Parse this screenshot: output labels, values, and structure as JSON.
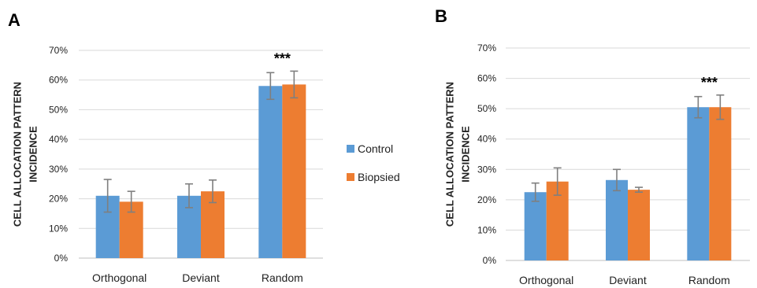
{
  "legend": {
    "placement": "between-panels",
    "entries": [
      "Control",
      "Biopsied"
    ]
  },
  "colors": {
    "control": "#5B9BD5",
    "biopsied": "#ED7D31",
    "error": "#7f7f7f",
    "grid": "#d9d9d9"
  },
  "chart_data": [
    {
      "type": "bar",
      "panel": "A",
      "title": "",
      "ylabel_lines": [
        "CELL ALLOCATION PATTERN",
        "INCIDENCE"
      ],
      "xlabel": "",
      "categories": [
        "Orthogonal",
        "Deviant",
        "Random"
      ],
      "ylim": [
        0,
        70
      ],
      "yticks": [
        "0%",
        "10%",
        "20%",
        "30%",
        "40%",
        "50%",
        "60%",
        "70%"
      ],
      "grid": true,
      "series": [
        {
          "name": "Control",
          "values": [
            21,
            21,
            58
          ],
          "errors": [
            5.5,
            4,
            4.5
          ]
        },
        {
          "name": "Biopsied",
          "values": [
            19,
            22.5,
            58.5
          ],
          "errors": [
            3.5,
            3.8,
            4.5
          ]
        }
      ],
      "annotations": [
        {
          "category": "Random",
          "text": "***"
        }
      ]
    },
    {
      "type": "bar",
      "panel": "B",
      "title": "",
      "ylabel_lines": [
        "CELL ALLOCATION PATTERN",
        "INCIDENCE"
      ],
      "xlabel": "",
      "categories": [
        "Orthogonal",
        "Deviant",
        "Random"
      ],
      "ylim": [
        0,
        70
      ],
      "yticks": [
        "0%",
        "10%",
        "20%",
        "30%",
        "40%",
        "50%",
        "60%",
        "70%"
      ],
      "grid": true,
      "series": [
        {
          "name": "Control",
          "values": [
            22.5,
            26.5,
            50.5
          ],
          "errors": [
            3,
            3.5,
            3.5
          ]
        },
        {
          "name": "Biopsied",
          "values": [
            26,
            23.3,
            50.5
          ],
          "errors": [
            4.5,
            0.8,
            4
          ]
        }
      ],
      "annotations": [
        {
          "category": "Random",
          "text": "***"
        }
      ]
    }
  ]
}
